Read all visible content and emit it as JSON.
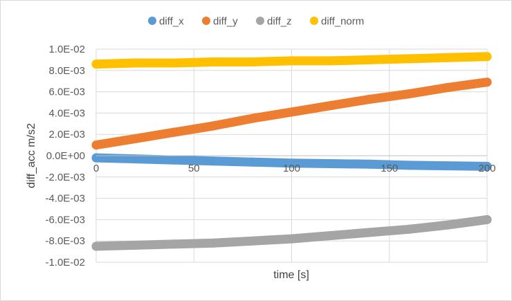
{
  "chart_data": {
    "type": "scatter",
    "title": "",
    "xlabel": "time [s]",
    "ylabel": "diff_acc m/s2",
    "xlim": [
      0,
      200
    ],
    "ylim": [
      -0.01,
      0.01
    ],
    "x_ticks": [
      0,
      50,
      100,
      150,
      200
    ],
    "x_tick_labels": [
      "0",
      "50",
      "100",
      "150",
      "200"
    ],
    "y_ticks": [
      0.01,
      0.008,
      0.006,
      0.004,
      0.002,
      0.0,
      -0.002,
      -0.004,
      -0.006,
      -0.008,
      -0.01
    ],
    "y_tick_labels": [
      "1.0E-02",
      "8.0E-03",
      "6.0E-03",
      "4.0E-03",
      "2.0E-03",
      "0.0E+00",
      "-2.0E-03",
      "-4.0E-03",
      "-6.0E-03",
      "-8.0E-03",
      "-1.0E-02"
    ],
    "grid": true,
    "legend_position": "top",
    "series": [
      {
        "name": "diff_x",
        "color": "#5b9bd5",
        "x": [
          0,
          20,
          40,
          60,
          80,
          100,
          120,
          140,
          160,
          180,
          200
        ],
        "y": [
          -0.0002,
          -0.0003,
          -0.0004,
          -0.0005,
          -0.0006,
          -0.0007,
          -0.00075,
          -0.0008,
          -0.0009,
          -0.00095,
          -0.001
        ]
      },
      {
        "name": "diff_y",
        "color": "#ed7d31",
        "x": [
          0,
          20,
          40,
          60,
          80,
          100,
          120,
          140,
          160,
          180,
          200
        ],
        "y": [
          0.001,
          0.0016,
          0.0022,
          0.0028,
          0.0035,
          0.0041,
          0.0047,
          0.0053,
          0.0058,
          0.0064,
          0.0069
        ]
      },
      {
        "name": "diff_z",
        "color": "#a5a5a5",
        "x": [
          0,
          20,
          40,
          60,
          80,
          100,
          120,
          140,
          160,
          180,
          200
        ],
        "y": [
          -0.0085,
          -0.0084,
          -0.0083,
          -0.0082,
          -0.008,
          -0.0078,
          -0.0075,
          -0.0072,
          -0.0069,
          -0.0065,
          -0.006
        ]
      },
      {
        "name": "diff_norm",
        "color": "#ffc000",
        "x": [
          0,
          20,
          40,
          60,
          80,
          100,
          120,
          140,
          160,
          180,
          200
        ],
        "y": [
          0.0086,
          0.0087,
          0.0087,
          0.0088,
          0.0088,
          0.0089,
          0.0089,
          0.009,
          0.0091,
          0.0092,
          0.0093
        ]
      }
    ]
  }
}
